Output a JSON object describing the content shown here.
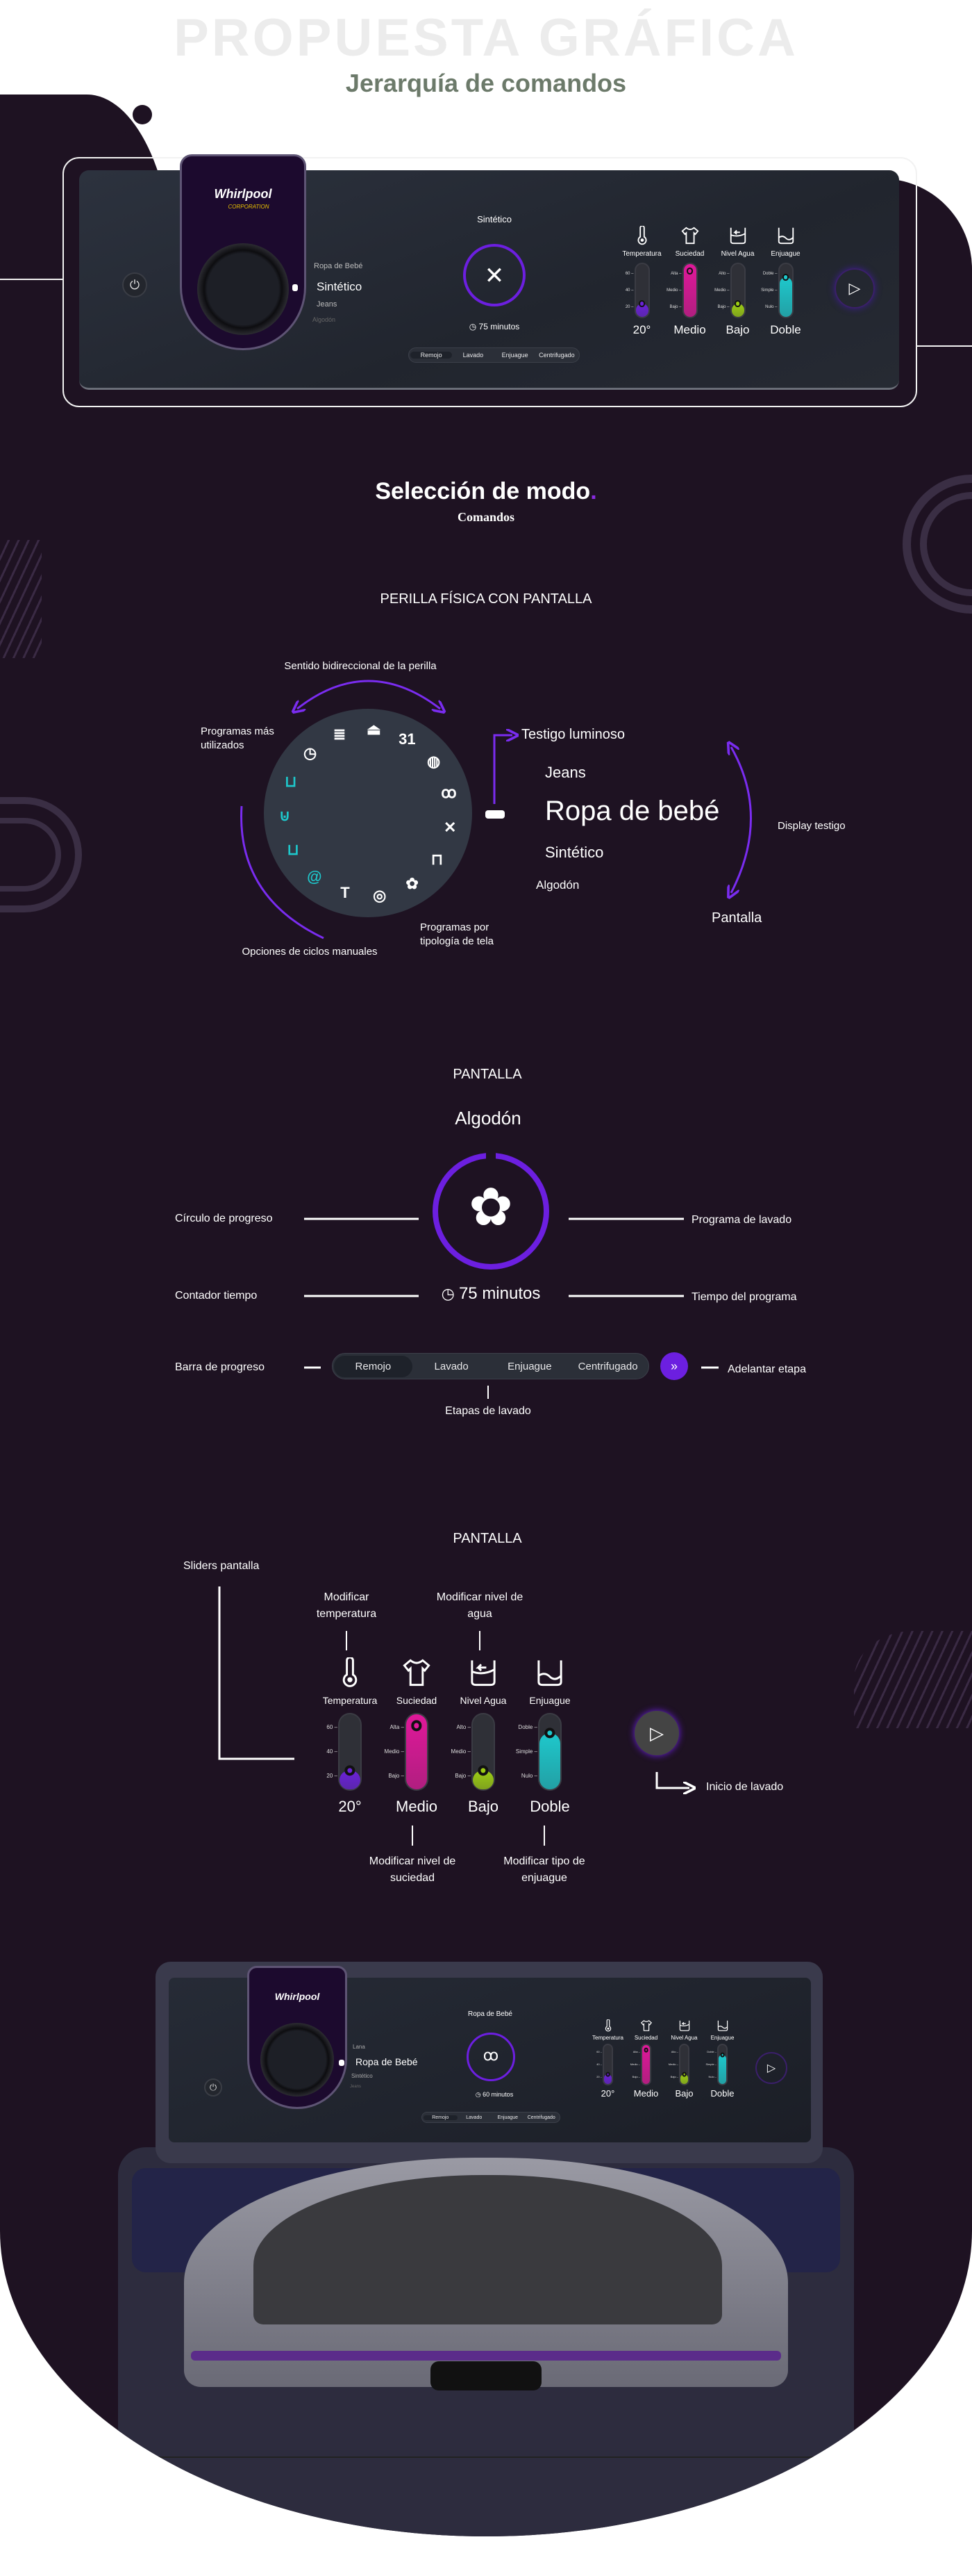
{
  "header": {
    "title_bg": "PROPUESTA GRÁFICA",
    "subtitle": "Jerarquía de comandos"
  },
  "colors": {
    "background": "#1e1222",
    "accent": "#6c1fe0",
    "temperature": "#6b22d8",
    "dirt": "#e0189a",
    "water": "#9ccc14",
    "rinse": "#1ec8cc",
    "subtitle": "#6c7a6a"
  },
  "top_panel": {
    "brand": "Whirlpool",
    "brand_sub": "CORPORATION",
    "programs": [
      "Ropa de Bebé",
      "Sintético",
      "Jeans",
      "Algodón"
    ],
    "program_title": "Sintético",
    "program_icon": "synthetic-icon",
    "time": "75 minutos",
    "stages": [
      "Remojo",
      "Lavado",
      "Enjuague",
      "Centrifugado"
    ],
    "active_stage": "Remojo"
  },
  "sliders": [
    {
      "label": "Temperatura",
      "icon": "thermometer-icon",
      "ticks": [
        "60",
        "40",
        "20"
      ],
      "value": "20°",
      "fill": 0.25,
      "color": "#6b22d8"
    },
    {
      "label": "Suciedad",
      "icon": "shirt-icon",
      "ticks": [
        "Alta",
        "Medio",
        "Bajo"
      ],
      "value": "Medio",
      "fill": 1.0,
      "color": "#e0189a"
    },
    {
      "label": "Nivel Agua",
      "icon": "water-level-icon",
      "ticks": [
        "Alto",
        "Medio",
        "Bajo"
      ],
      "value": "Bajo",
      "fill": 0.25,
      "color": "#9ccc14"
    },
    {
      "label": "Enjuague",
      "icon": "rinse-icon",
      "ticks": [
        "Doble",
        "Simple",
        "Nulo"
      ],
      "value": "Doble",
      "fill": 0.75,
      "color": "#1ec8cc"
    }
  ],
  "section": {
    "title": "Selección de modo",
    "title_dot": ".",
    "subtitle": "Comandos"
  },
  "knob": {
    "heading": "PERILLA FÍSICA CON PANTALLA",
    "rotation_label": "Sentido bidireccional de la perilla",
    "most_used_label": "Programas más utilizados",
    "manual_label": "Opciones de ciclos manuales",
    "fabric_label": "Programas por tipología de tela",
    "indicator_label": "Testigo luminoso",
    "display_label": "Display testigo",
    "screen_label": "Pantalla",
    "programs": [
      "Jeans",
      "Ropa de bebé",
      "Sintético",
      "Algodón"
    ],
    "dial_icons": [
      {
        "name": "duvet-icon",
        "glyph": "≣",
        "color": "#ffffff"
      },
      {
        "name": "iron-icon",
        "glyph": "⏏",
        "color": "#ffffff"
      },
      {
        "name": "calendar-icon",
        "glyph": "31",
        "color": "#ffffff"
      },
      {
        "name": "wool-icon",
        "glyph": "◍",
        "color": "#ffffff"
      },
      {
        "name": "baby-clothes-icon",
        "glyph": "ꝏ",
        "color": "#ffffff"
      },
      {
        "name": "synthetic-icon",
        "glyph": "✕",
        "color": "#ffffff"
      },
      {
        "name": "jeans-icon",
        "glyph": "⊓",
        "color": "#ffffff"
      },
      {
        "name": "cotton-icon",
        "glyph": "✿",
        "color": "#ffffff"
      },
      {
        "name": "quick-spin-icon",
        "glyph": "◎",
        "color": "#ffffff"
      },
      {
        "name": "shirt-icon",
        "glyph": "T",
        "color": "#ffffff"
      },
      {
        "name": "spin-icon",
        "glyph": "@",
        "color": "#1ec8cc"
      },
      {
        "name": "tub-plus-icon",
        "glyph": "⊔",
        "color": "#1ec8cc"
      },
      {
        "name": "soak-icon",
        "glyph": "⊍",
        "color": "#1ec8cc"
      },
      {
        "name": "rinse-icon",
        "glyph": "⊔",
        "color": "#1ec8cc"
      },
      {
        "name": "quick-wash-icon",
        "glyph": "◷",
        "color": "#ffffff"
      }
    ]
  },
  "screen": {
    "heading": "PANTALLA",
    "program": "Algodón",
    "program_icon": "cotton-icon",
    "time": "75 minutos",
    "stages": [
      "Remojo",
      "Lavado",
      "Enjuague",
      "Centrifugado"
    ],
    "active_stage": "Remojo",
    "labels": {
      "progress_circle": "Círculo de progreso",
      "program": "Programa de lavado",
      "counter": "Contador tiempo",
      "program_time": "Tiempo del programa",
      "progress_bar": "Barra de progreso",
      "skip": "Adelantar etapa",
      "stages": "Etapas de lavado"
    }
  },
  "sliders_section": {
    "heading": "PANTALLA",
    "title": "Sliders pantalla",
    "temp_label": "Modificar temperatura",
    "water_label": "Modificar nivel de agua",
    "dirt_label": "Modificar nivel de suciedad",
    "rinse_label": "Modificar tipo de enjuague",
    "start_label": "Inicio de lavado"
  },
  "washer": {
    "brand": "Whirlpool",
    "programs": [
      "Lana",
      "Ropa de Bebé",
      "Sintético",
      "Jeans"
    ],
    "program_title": "Ropa de Bebé",
    "time": "60 minutos",
    "stages": [
      "Remojo",
      "Lavado",
      "Enjuague",
      "Centrifugado"
    ]
  }
}
